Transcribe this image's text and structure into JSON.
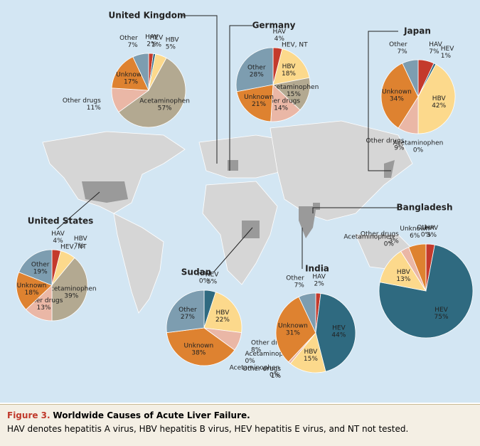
{
  "figure": {
    "label": "Figure 3.",
    "title": "Worldwide Causes of Acute Liver Failure.",
    "note": "HAV denotes hepatitis A virus, HBV hepatitis B virus, HEV hepatitis E virus, and NT not tested."
  },
  "chart_data": [
    {
      "type": "pie",
      "title": "United Kingdom",
      "categories": [
        "HAV",
        "HEV",
        "HBV",
        "Acetaminophen",
        "Other drugs",
        "Unknown",
        "Other"
      ],
      "values": [
        2,
        1,
        5,
        57,
        11,
        17,
        7
      ],
      "value_labels": [
        "2%",
        "1%",
        "5%",
        "57%",
        "11%",
        "17%",
        "7%"
      ],
      "colors": [
        "#c43a2c",
        "#2f6a80",
        "#fcd98c",
        "#b3a991",
        "#eab7a6",
        "#de8230",
        "#7d9db0"
      ]
    },
    {
      "type": "pie",
      "title": "Germany",
      "annotation": "HEV, NT",
      "categories": [
        "HAV",
        "HBV",
        "Acetaminophen",
        "Other drugs",
        "Unknown",
        "Other"
      ],
      "values": [
        4,
        18,
        15,
        14,
        21,
        28
      ],
      "value_labels": [
        "4%",
        "18%",
        "15%",
        "14%",
        "21%",
        "28%"
      ],
      "colors": [
        "#c43a2c",
        "#fcd98c",
        "#b3a991",
        "#eab7a6",
        "#de8230",
        "#7d9db0"
      ]
    },
    {
      "type": "pie",
      "title": "Japan",
      "categories": [
        "HAV",
        "HEV",
        "HBV",
        "Acetaminophen",
        "Other drugs",
        "Unknown",
        "Other"
      ],
      "values": [
        7,
        1,
        42,
        0,
        9,
        34,
        7
      ],
      "value_labels": [
        "7%",
        "1%",
        "42%",
        "0%",
        "9%",
        "34%",
        "7%"
      ],
      "colors": [
        "#c43a2c",
        "#2f6a80",
        "#fcd98c",
        "#b3a991",
        "#eab7a6",
        "#de8230",
        "#7d9db0"
      ]
    },
    {
      "type": "pie",
      "title": "United States",
      "annotation": "HEV, NT",
      "categories": [
        "HAV",
        "HBV",
        "Acetaminophen",
        "Other drugs",
        "Unknown",
        "Other"
      ],
      "values": [
        4,
        7,
        39,
        13,
        18,
        19
      ],
      "value_labels": [
        "4%",
        "7%",
        "39%",
        "13%",
        "18%",
        "19%"
      ],
      "colors": [
        "#c43a2c",
        "#fcd98c",
        "#b3a991",
        "#eab7a6",
        "#de8230",
        "#7d9db0"
      ]
    },
    {
      "type": "pie",
      "title": "Sudan",
      "categories": [
        "HAV",
        "HEV",
        "HBV",
        "Other drugs",
        "Acetaminophen",
        "Unknown",
        "Other"
      ],
      "values": [
        0,
        5,
        22,
        8,
        0,
        38,
        27
      ],
      "value_labels": [
        "0%",
        "5%",
        "22%",
        "8%",
        "0%",
        "38%",
        "27%"
      ],
      "colors": [
        "#c43a2c",
        "#2f6a80",
        "#fcd98c",
        "#eab7a6",
        "#b3a991",
        "#de8230",
        "#7d9db0"
      ]
    },
    {
      "type": "pie",
      "title": "India",
      "categories": [
        "HAV",
        "HEV",
        "HBV",
        "Other drugs",
        "Acetaminophen",
        "Unknown",
        "Other"
      ],
      "values": [
        2,
        44,
        15,
        1,
        0,
        31,
        7
      ],
      "value_labels": [
        "2%",
        "44%",
        "15%",
        "1%",
        "0%",
        "31%",
        "7%"
      ],
      "colors": [
        "#c43a2c",
        "#2f6a80",
        "#fcd98c",
        "#eab7a6",
        "#b3a991",
        "#de8230",
        "#7d9db0"
      ]
    },
    {
      "type": "pie",
      "title": "Bangladesh",
      "categories": [
        "HAV",
        "HEV",
        "HBV",
        "Acetaminophen",
        "Other drugs",
        "Unknown",
        "Other"
      ],
      "values": [
        3,
        75,
        13,
        0,
        3,
        6,
        0
      ],
      "value_labels": [
        "3%",
        "75%",
        "13%",
        "0%",
        "3%",
        "6%",
        "0%"
      ],
      "colors": [
        "#c43a2c",
        "#2f6a80",
        "#fcd98c",
        "#b3a991",
        "#eab7a6",
        "#de8230",
        "#7d9db0"
      ]
    }
  ]
}
